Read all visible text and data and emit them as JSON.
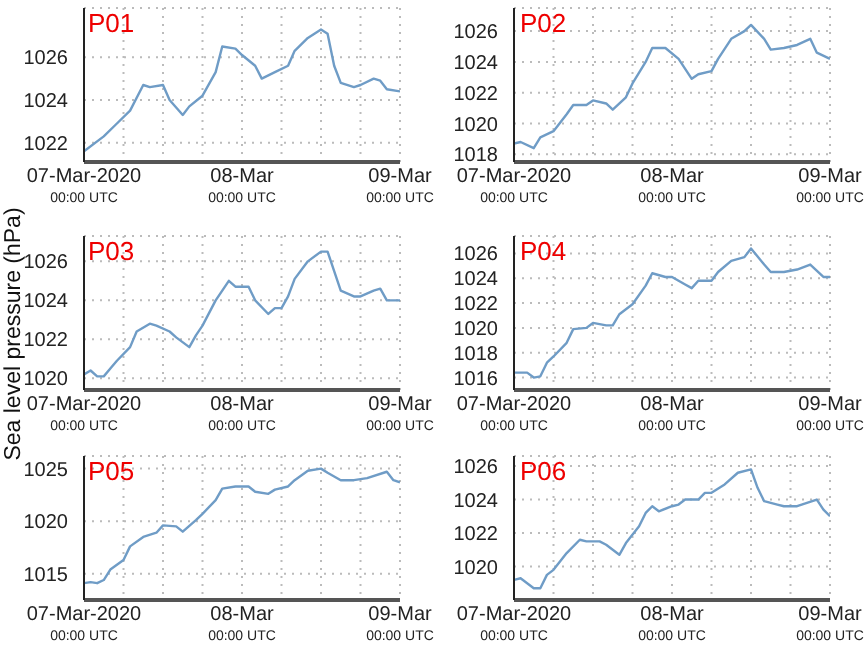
{
  "chart_data": [
    {
      "type": "line",
      "title": "P01",
      "color": "#6f9cc6",
      "grid": true,
      "marker": "none",
      "xlim": [
        "2020-03-07T00:00",
        "2020-03-09T00:00"
      ],
      "ylim": [
        1021.1,
        1028.3
      ],
      "yticks": [
        1022,
        1024,
        1026
      ],
      "xticks": [
        {
          "value": "2020-03-07T00:00",
          "label": "07-Mar-2020\n00:00 UTC"
        },
        {
          "value": "2020-03-07T06:00",
          "label": null
        },
        {
          "value": "2020-03-07T12:00",
          "label": null
        },
        {
          "value": "2020-03-07T18:00",
          "label": null
        },
        {
          "value": "2020-03-08T00:00",
          "label": "08-Mar\n00:00 UTC"
        },
        {
          "value": "2020-03-08T06:00",
          "label": null
        },
        {
          "value": "2020-03-08T12:00",
          "label": null
        },
        {
          "value": "2020-03-08T18:00",
          "label": null
        },
        {
          "value": "2020-03-09T00:00",
          "label": "09-Mar\n00:00 UTC"
        }
      ],
      "x": [
        "2020-03-07T00:00",
        "2020-03-07T03:00",
        "2020-03-07T05:00",
        "2020-03-07T07:00",
        "2020-03-07T09:00",
        "2020-03-07T10:00",
        "2020-03-07T12:00",
        "2020-03-07T13:00",
        "2020-03-07T15:00",
        "2020-03-07T16:00",
        "2020-03-07T18:00",
        "2020-03-07T20:00",
        "2020-03-07T21:00",
        "2020-03-07T23:00",
        "2020-03-08T00:00",
        "2020-03-08T02:00",
        "2020-03-08T03:00",
        "2020-03-08T05:00",
        "2020-03-08T07:00",
        "2020-03-08T08:00",
        "2020-03-08T10:00",
        "2020-03-08T12:00",
        "2020-03-08T13:00",
        "2020-03-08T14:00",
        "2020-03-08T15:00",
        "2020-03-08T17:00",
        "2020-03-08T18:00",
        "2020-03-08T20:00",
        "2020-03-08T21:00",
        "2020-03-08T22:00",
        "2020-03-09T00:00"
      ],
      "values": [
        1021.6,
        1022.3,
        1022.9,
        1023.5,
        1024.7,
        1024.6,
        1024.7,
        1024.0,
        1023.3,
        1023.7,
        1024.2,
        1025.3,
        1026.5,
        1026.4,
        1026.1,
        1025.6,
        1025.0,
        1025.3,
        1025.6,
        1026.3,
        1026.9,
        1027.3,
        1027.1,
        1025.6,
        1024.8,
        1024.6,
        1024.7,
        1025.0,
        1024.9,
        1024.5,
        1024.4
      ]
    },
    {
      "type": "line",
      "title": "P02",
      "color": "#6f9cc6",
      "grid": true,
      "marker": "none",
      "xlim": [
        "2020-03-07T00:00",
        "2020-03-09T00:00"
      ],
      "ylim": [
        1017.5,
        1027.5
      ],
      "yticks": [
        1018,
        1020,
        1022,
        1024,
        1026
      ],
      "xticks": [
        {
          "value": "2020-03-07T00:00",
          "label": "07-Mar-2020\n00:00 UTC"
        },
        {
          "value": "2020-03-07T06:00",
          "label": null
        },
        {
          "value": "2020-03-07T12:00",
          "label": null
        },
        {
          "value": "2020-03-07T18:00",
          "label": null
        },
        {
          "value": "2020-03-08T00:00",
          "label": "08-Mar\n00:00 UTC"
        },
        {
          "value": "2020-03-08T06:00",
          "label": null
        },
        {
          "value": "2020-03-08T12:00",
          "label": null
        },
        {
          "value": "2020-03-08T18:00",
          "label": null
        },
        {
          "value": "2020-03-09T00:00",
          "label": "09-Mar\n00:00 UTC"
        }
      ],
      "x": [
        "2020-03-07T00:00",
        "2020-03-07T01:00",
        "2020-03-07T03:00",
        "2020-03-07T04:00",
        "2020-03-07T06:00",
        "2020-03-07T08:00",
        "2020-03-07T09:00",
        "2020-03-07T11:00",
        "2020-03-07T12:00",
        "2020-03-07T14:00",
        "2020-03-07T15:00",
        "2020-03-07T17:00",
        "2020-03-07T18:00",
        "2020-03-07T20:00",
        "2020-03-07T21:00",
        "2020-03-07T23:00",
        "2020-03-08T01:00",
        "2020-03-08T03:00",
        "2020-03-08T04:00",
        "2020-03-08T06:00",
        "2020-03-08T07:00",
        "2020-03-08T09:00",
        "2020-03-08T11:00",
        "2020-03-08T12:00",
        "2020-03-08T14:00",
        "2020-03-08T15:00",
        "2020-03-08T17:00",
        "2020-03-08T19:00",
        "2020-03-08T21:00",
        "2020-03-08T22:00",
        "2020-03-09T00:00"
      ],
      "values": [
        1018.7,
        1018.8,
        1018.4,
        1019.1,
        1019.5,
        1020.6,
        1021.2,
        1021.2,
        1021.5,
        1021.3,
        1020.9,
        1021.7,
        1022.6,
        1024.0,
        1024.9,
        1024.9,
        1024.2,
        1022.9,
        1023.2,
        1023.4,
        1024.2,
        1025.5,
        1026.0,
        1026.4,
        1025.5,
        1024.8,
        1024.9,
        1025.1,
        1025.5,
        1024.6,
        1024.2
      ]
    },
    {
      "type": "line",
      "title": "P03",
      "ylabel": "Sea level pressure (hPa)",
      "color": "#6f9cc6",
      "grid": true,
      "marker": "none",
      "xlim": [
        "2020-03-07T00:00",
        "2020-03-09T00:00"
      ],
      "ylim": [
        1019.4,
        1027.3
      ],
      "yticks": [
        1020,
        1022,
        1024,
        1026
      ],
      "xticks": [
        {
          "value": "2020-03-07T00:00",
          "label": "07-Mar-2020\n00:00 UTC"
        },
        {
          "value": "2020-03-07T06:00",
          "label": null
        },
        {
          "value": "2020-03-07T12:00",
          "label": null
        },
        {
          "value": "2020-03-07T18:00",
          "label": null
        },
        {
          "value": "2020-03-08T00:00",
          "label": "08-Mar\n00:00 UTC"
        },
        {
          "value": "2020-03-08T06:00",
          "label": null
        },
        {
          "value": "2020-03-08T12:00",
          "label": null
        },
        {
          "value": "2020-03-08T18:00",
          "label": null
        },
        {
          "value": "2020-03-09T00:00",
          "label": "09-Mar\n00:00 UTC"
        }
      ],
      "x": [
        "2020-03-07T00:00",
        "2020-03-07T01:00",
        "2020-03-07T02:00",
        "2020-03-07T03:00",
        "2020-03-07T04:00",
        "2020-03-07T05:00",
        "2020-03-07T07:00",
        "2020-03-07T08:00",
        "2020-03-07T10:00",
        "2020-03-07T11:00",
        "2020-03-07T13:00",
        "2020-03-07T14:00",
        "2020-03-07T16:00",
        "2020-03-07T17:00",
        "2020-03-07T18:00",
        "2020-03-07T20:00",
        "2020-03-07T22:00",
        "2020-03-07T23:00",
        "2020-03-08T01:00",
        "2020-03-08T02:00",
        "2020-03-08T04:00",
        "2020-03-08T05:00",
        "2020-03-08T06:00",
        "2020-03-08T07:00",
        "2020-03-08T08:00",
        "2020-03-08T10:00",
        "2020-03-08T12:00",
        "2020-03-08T13:00",
        "2020-03-08T14:00",
        "2020-03-08T15:00",
        "2020-03-08T17:00",
        "2020-03-08T18:00",
        "2020-03-08T20:00",
        "2020-03-08T21:00",
        "2020-03-08T22:00",
        "2020-03-09T00:00"
      ],
      "values": [
        1020.2,
        1020.4,
        1020.1,
        1020.1,
        1020.5,
        1020.9,
        1021.6,
        1022.4,
        1022.8,
        1022.7,
        1022.4,
        1022.1,
        1021.6,
        1022.2,
        1022.7,
        1024.0,
        1025.0,
        1024.7,
        1024.7,
        1024.0,
        1023.3,
        1023.6,
        1023.6,
        1024.2,
        1025.1,
        1026.0,
        1026.5,
        1026.5,
        1025.5,
        1024.5,
        1024.2,
        1024.2,
        1024.5,
        1024.6,
        1024.0,
        1024.0
      ]
    },
    {
      "type": "line",
      "title": "P04",
      "color": "#6f9cc6",
      "grid": true,
      "marker": "none",
      "xlim": [
        "2020-03-07T00:00",
        "2020-03-09T00:00"
      ],
      "ylim": [
        1015.0,
        1027.4
      ],
      "yticks": [
        1016,
        1018,
        1020,
        1022,
        1024,
        1026
      ],
      "xticks": [
        {
          "value": "2020-03-07T00:00",
          "label": "07-Mar-2020\n00:00 UTC"
        },
        {
          "value": "2020-03-07T06:00",
          "label": null
        },
        {
          "value": "2020-03-07T12:00",
          "label": null
        },
        {
          "value": "2020-03-07T18:00",
          "label": null
        },
        {
          "value": "2020-03-08T00:00",
          "label": "08-Mar\n00:00 UTC"
        },
        {
          "value": "2020-03-08T06:00",
          "label": null
        },
        {
          "value": "2020-03-08T12:00",
          "label": null
        },
        {
          "value": "2020-03-08T18:00",
          "label": null
        },
        {
          "value": "2020-03-09T00:00",
          "label": "09-Mar\n00:00 UTC"
        }
      ],
      "x": [
        "2020-03-07T00:00",
        "2020-03-07T02:00",
        "2020-03-07T03:00",
        "2020-03-07T04:00",
        "2020-03-07T05:00",
        "2020-03-07T06:00",
        "2020-03-07T08:00",
        "2020-03-07T09:00",
        "2020-03-07T11:00",
        "2020-03-07T12:00",
        "2020-03-07T14:00",
        "2020-03-07T15:00",
        "2020-03-07T16:00",
        "2020-03-07T18:00",
        "2020-03-07T20:00",
        "2020-03-07T21:00",
        "2020-03-07T23:00",
        "2020-03-08T00:00",
        "2020-03-08T02:00",
        "2020-03-08T03:00",
        "2020-03-08T04:00",
        "2020-03-08T06:00",
        "2020-03-08T07:00",
        "2020-03-08T09:00",
        "2020-03-08T11:00",
        "2020-03-08T12:00",
        "2020-03-08T14:00",
        "2020-03-08T15:00",
        "2020-03-08T17:00",
        "2020-03-08T19:00",
        "2020-03-08T21:00",
        "2020-03-08T23:00",
        "2020-03-09T00:00"
      ],
      "values": [
        1016.4,
        1016.4,
        1016.0,
        1016.1,
        1017.2,
        1017.7,
        1018.8,
        1019.9,
        1020.0,
        1020.4,
        1020.2,
        1020.2,
        1021.1,
        1021.9,
        1023.4,
        1024.4,
        1024.1,
        1024.1,
        1023.5,
        1023.2,
        1023.8,
        1023.8,
        1024.5,
        1025.4,
        1025.7,
        1026.4,
        1025.1,
        1024.5,
        1024.5,
        1024.7,
        1025.1,
        1024.1,
        1024.1
      ]
    },
    {
      "type": "line",
      "title": "P05",
      "color": "#6f9cc6",
      "grid": true,
      "marker": "none",
      "xlim": [
        "2020-03-07T00:00",
        "2020-03-09T00:00"
      ],
      "ylim": [
        1012.5,
        1026.2
      ],
      "yticks": [
        1015,
        1020,
        1025
      ],
      "xticks": [
        {
          "value": "2020-03-07T00:00",
          "label": "07-Mar-2020\n00:00 UTC"
        },
        {
          "value": "2020-03-07T06:00",
          "label": null
        },
        {
          "value": "2020-03-07T12:00",
          "label": null
        },
        {
          "value": "2020-03-07T18:00",
          "label": null
        },
        {
          "value": "2020-03-08T00:00",
          "label": "08-Mar\n00:00 UTC"
        },
        {
          "value": "2020-03-08T06:00",
          "label": null
        },
        {
          "value": "2020-03-08T12:00",
          "label": null
        },
        {
          "value": "2020-03-08T18:00",
          "label": null
        },
        {
          "value": "2020-03-09T00:00",
          "label": "09-Mar\n00:00 UTC"
        }
      ],
      "x": [
        "2020-03-07T00:00",
        "2020-03-07T01:00",
        "2020-03-07T02:00",
        "2020-03-07T03:00",
        "2020-03-07T04:00",
        "2020-03-07T06:00",
        "2020-03-07T07:00",
        "2020-03-07T09:00",
        "2020-03-07T11:00",
        "2020-03-07T12:00",
        "2020-03-07T14:00",
        "2020-03-07T15:00",
        "2020-03-07T17:00",
        "2020-03-07T18:00",
        "2020-03-07T20:00",
        "2020-03-07T21:00",
        "2020-03-07T23:00",
        "2020-03-08T01:00",
        "2020-03-08T02:00",
        "2020-03-08T04:00",
        "2020-03-08T05:00",
        "2020-03-08T07:00",
        "2020-03-08T08:00",
        "2020-03-08T10:00",
        "2020-03-08T12:00",
        "2020-03-08T13:00",
        "2020-03-08T15:00",
        "2020-03-08T17:00",
        "2020-03-08T19:00",
        "2020-03-08T22:00",
        "2020-03-08T23:00",
        "2020-03-09T00:00"
      ],
      "values": [
        1014.1,
        1014.2,
        1014.1,
        1014.4,
        1015.4,
        1016.3,
        1017.6,
        1018.5,
        1018.9,
        1019.6,
        1019.5,
        1019.0,
        1020.1,
        1020.7,
        1022.0,
        1023.1,
        1023.3,
        1023.3,
        1022.8,
        1022.6,
        1023.0,
        1023.3,
        1023.9,
        1024.8,
        1025.0,
        1024.6,
        1023.9,
        1023.9,
        1024.1,
        1024.7,
        1023.9,
        1023.7
      ]
    },
    {
      "type": "line",
      "title": "P06",
      "color": "#6f9cc6",
      "grid": true,
      "marker": "none",
      "xlim": [
        "2020-03-07T00:00",
        "2020-03-09T00:00"
      ],
      "ylim": [
        1018.0,
        1026.6
      ],
      "yticks": [
        1020,
        1022,
        1024,
        1026
      ],
      "xticks": [
        {
          "value": "2020-03-07T00:00",
          "label": "07-Mar-2020\n00:00 UTC"
        },
        {
          "value": "2020-03-07T06:00",
          "label": null
        },
        {
          "value": "2020-03-07T12:00",
          "label": null
        },
        {
          "value": "2020-03-07T18:00",
          "label": null
        },
        {
          "value": "2020-03-08T00:00",
          "label": "08-Mar\n00:00 UTC"
        },
        {
          "value": "2020-03-08T06:00",
          "label": null
        },
        {
          "value": "2020-03-08T12:00",
          "label": null
        },
        {
          "value": "2020-03-08T18:00",
          "label": null
        },
        {
          "value": "2020-03-09T00:00",
          "label": "09-Mar\n00:00 UTC"
        }
      ],
      "x": [
        "2020-03-07T00:00",
        "2020-03-07T01:00",
        "2020-03-07T03:00",
        "2020-03-07T04:00",
        "2020-03-07T05:00",
        "2020-03-07T06:00",
        "2020-03-07T08:00",
        "2020-03-07T10:00",
        "2020-03-07T11:00",
        "2020-03-07T13:00",
        "2020-03-07T14:00",
        "2020-03-07T16:00",
        "2020-03-07T17:00",
        "2020-03-07T19:00",
        "2020-03-07T20:00",
        "2020-03-07T21:00",
        "2020-03-07T22:00",
        "2020-03-08T00:00",
        "2020-03-08T01:00",
        "2020-03-08T02:00",
        "2020-03-08T04:00",
        "2020-03-08T05:00",
        "2020-03-08T06:00",
        "2020-03-08T08:00",
        "2020-03-08T10:00",
        "2020-03-08T12:00",
        "2020-03-08T13:00",
        "2020-03-08T14:00",
        "2020-03-08T16:00",
        "2020-03-08T17:00",
        "2020-03-08T19:00",
        "2020-03-08T22:00",
        "2020-03-08T23:00",
        "2020-03-09T00:00"
      ],
      "values": [
        1019.2,
        1019.3,
        1018.7,
        1018.7,
        1019.5,
        1019.8,
        1020.8,
        1021.6,
        1021.5,
        1021.5,
        1021.3,
        1020.7,
        1021.4,
        1022.4,
        1023.2,
        1023.6,
        1023.3,
        1023.6,
        1023.7,
        1024.0,
        1024.0,
        1024.4,
        1024.4,
        1024.9,
        1025.6,
        1025.8,
        1024.7,
        1023.9,
        1023.7,
        1023.6,
        1023.6,
        1024.0,
        1023.4,
        1023.0
      ]
    }
  ]
}
